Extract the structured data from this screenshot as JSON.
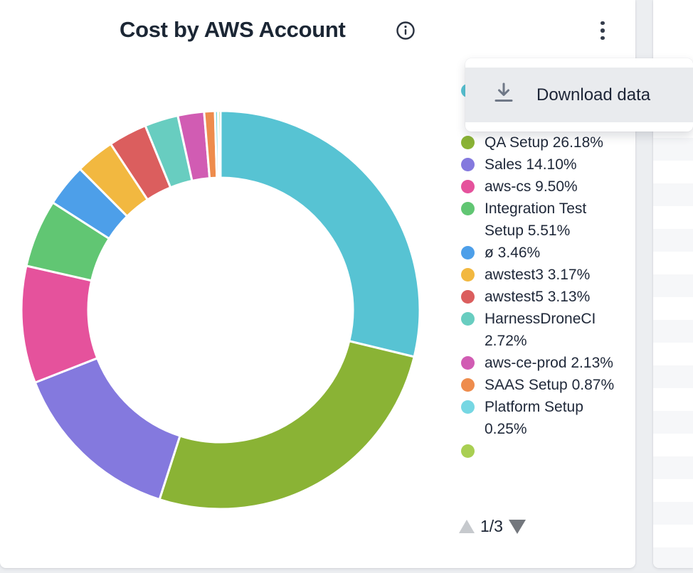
{
  "widget": {
    "title": "Cost by AWS Account",
    "info_icon": "info-icon",
    "kebab_icon": "kebab-menu-icon"
  },
  "menu": {
    "items": [
      {
        "label": "Download data",
        "icon": "download-icon"
      }
    ]
  },
  "legend": {
    "items": [
      {
        "text": "",
        "color": "#57c3d3",
        "note": "covered by open menu"
      },
      {
        "text": "QA Setup 26.18%",
        "color": "#8ab335"
      },
      {
        "text": "Sales 14.10%",
        "color": "#8479de"
      },
      {
        "text": "aws-cs 9.50%",
        "color": "#e5529c"
      },
      {
        "text": "Integration Test Setup 5.51%",
        "color": "#61c673"
      },
      {
        "text": "ø 3.46%",
        "color": "#4d9fe9"
      },
      {
        "text": "awstest3 3.17%",
        "color": "#f2b840"
      },
      {
        "text": "awstest5 3.13%",
        "color": "#db5e5e"
      },
      {
        "text": "HarnessDroneCI 2.72%",
        "color": "#68cdc0"
      },
      {
        "text": "aws-ce-prod 2.13%",
        "color": "#d15cb3"
      },
      {
        "text": "SAAS Setup 0.87%",
        "color": "#ee8c4d"
      },
      {
        "text": "Platform Setup 0.25%",
        "color": "#76d7e3"
      },
      {
        "text": "",
        "color": "#a9cf52",
        "note": "clipped at bottom of legend"
      }
    ]
  },
  "pagination": {
    "page_indicator": "1/3",
    "up_arrow": "page-up-icon",
    "down_arrow": "page-down-icon"
  },
  "chart_data": {
    "type": "pie",
    "title": "Cost by AWS Account",
    "donut": true,
    "unit": "%",
    "start_angle_deg": 0,
    "direction": "clockwise",
    "legend_position": "right",
    "slices": [
      {
        "label": "",
        "value": 28.78,
        "color": "#57c3d3",
        "estimated": true
      },
      {
        "label": "QA Setup",
        "value": 26.18,
        "color": "#8ab335"
      },
      {
        "label": "Sales",
        "value": 14.1,
        "color": "#8479de"
      },
      {
        "label": "aws-cs",
        "value": 9.5,
        "color": "#e5529c"
      },
      {
        "label": "Integration Test Setup",
        "value": 5.51,
        "color": "#61c673"
      },
      {
        "label": "ø",
        "value": 3.46,
        "color": "#4d9fe9"
      },
      {
        "label": "awstest3",
        "value": 3.17,
        "color": "#f2b840"
      },
      {
        "label": "awstest5",
        "value": 3.13,
        "color": "#db5e5e"
      },
      {
        "label": "HarnessDroneCI",
        "value": 2.72,
        "color": "#68cdc0"
      },
      {
        "label": "aws-ce-prod",
        "value": 2.13,
        "color": "#d15cb3"
      },
      {
        "label": "SAAS Setup",
        "value": 0.87,
        "color": "#ee8c4d"
      },
      {
        "label": "Platform Setup",
        "value": 0.25,
        "color": "#76d7e3"
      },
      {
        "label": "",
        "value": 0.2,
        "color": "#a9cf52",
        "estimated": true
      }
    ]
  },
  "colors": {
    "text_primary": "#1b2634",
    "page_background": "#eceef1",
    "card_background": "#ffffff",
    "menu_item_background": "#e9ebee",
    "icon_gray": "#6f7887",
    "pagination_up_disabled": "#c6c9cd",
    "pagination_down_enabled": "#73777d"
  }
}
